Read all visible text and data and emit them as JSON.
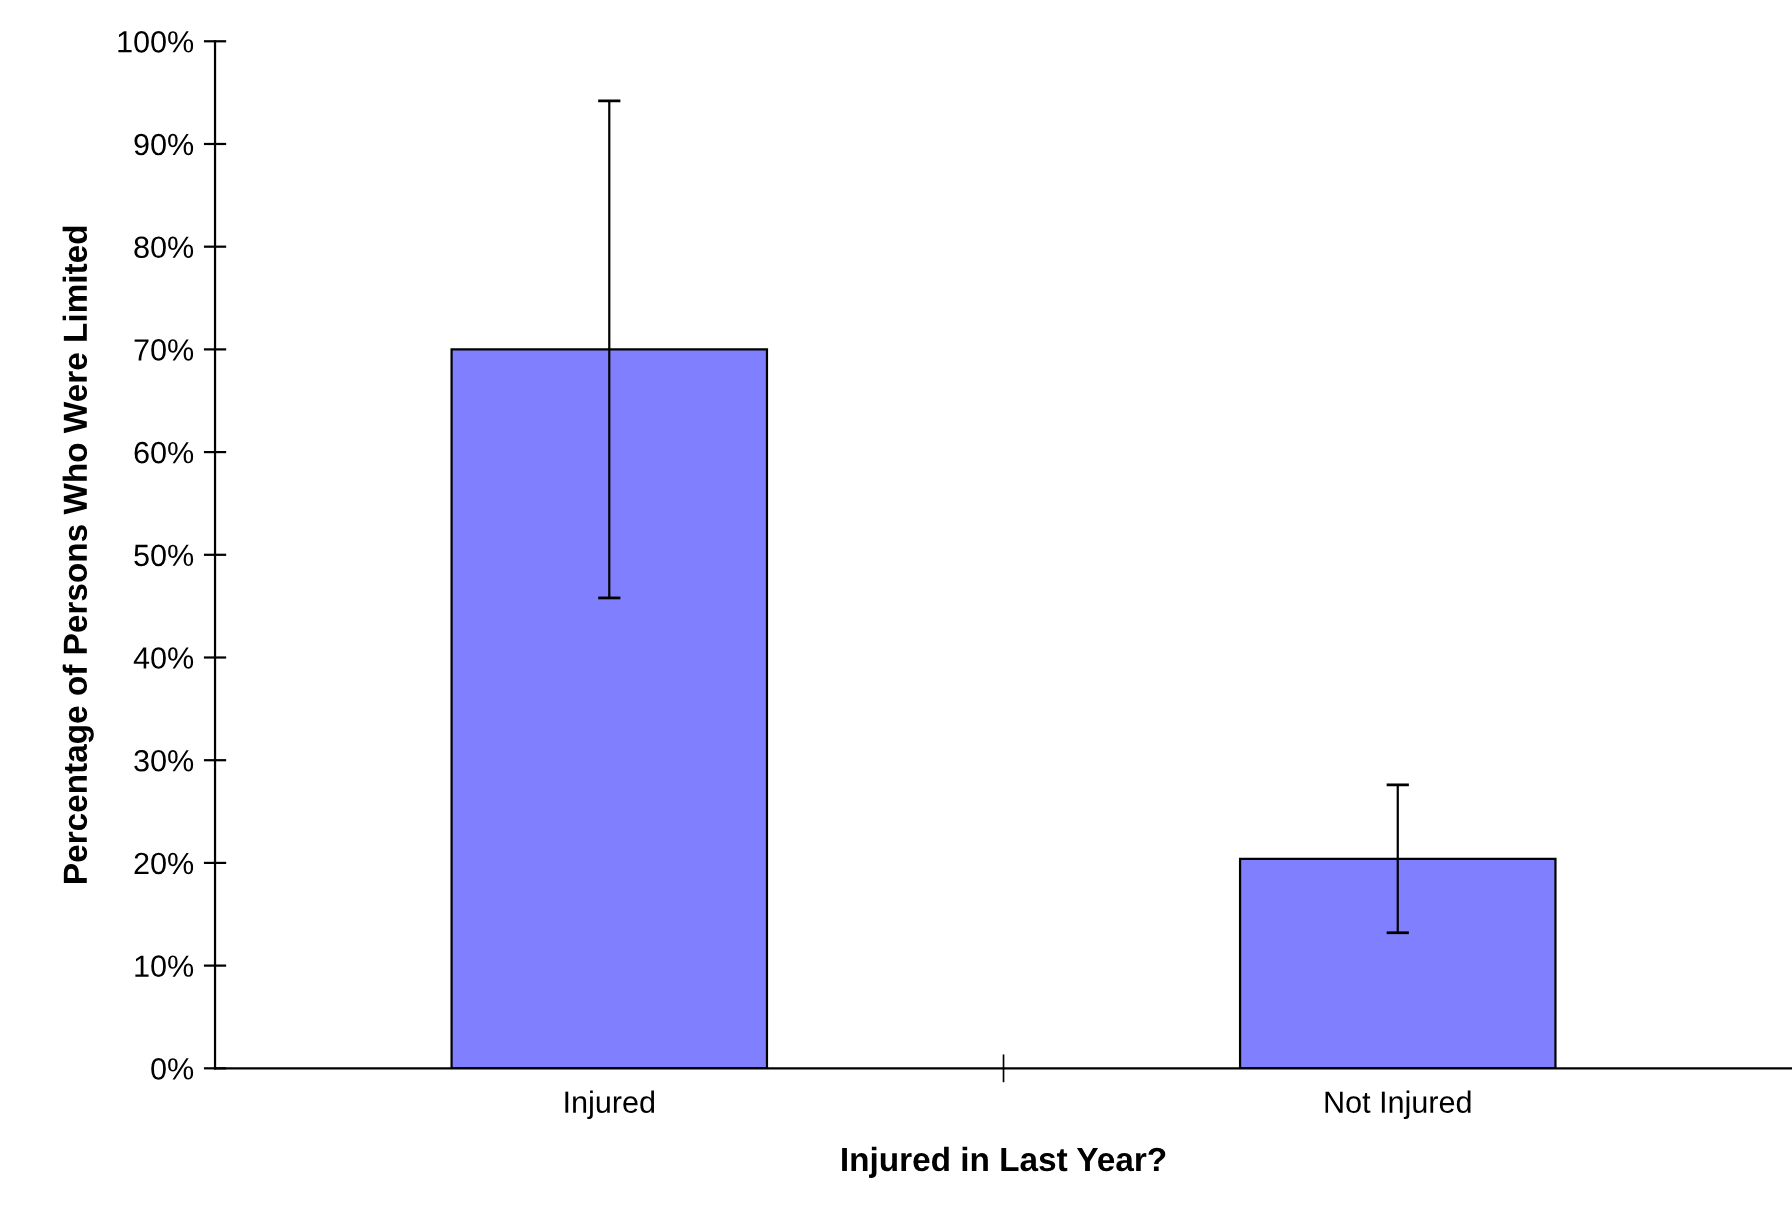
{
  "chart_data": {
    "type": "bar",
    "xlabel": "Injured in Last Year?",
    "ylabel": "Percentage of Persons Who Were Limited",
    "categories": [
      "Injured",
      "Not Injured"
    ],
    "values": [
      70,
      20.4
    ],
    "errors": [
      24.2,
      7.2
    ],
    "color": "#8080ff",
    "ylim": [
      0,
      100
    ],
    "yticks": [
      {
        "value": 0,
        "label": "0%"
      },
      {
        "value": 10,
        "label": "10%"
      },
      {
        "value": 20,
        "label": "20%"
      },
      {
        "value": 30,
        "label": "30%"
      },
      {
        "value": 40,
        "label": "40%"
      },
      {
        "value": 50,
        "label": "50%"
      },
      {
        "value": 60,
        "label": "60%"
      },
      {
        "value": 70,
        "label": "70%"
      },
      {
        "value": 80,
        "label": "80%"
      },
      {
        "value": 90,
        "label": "90%"
      },
      {
        "value": 100,
        "label": "100%"
      }
    ],
    "grid": false,
    "legend": false
  }
}
